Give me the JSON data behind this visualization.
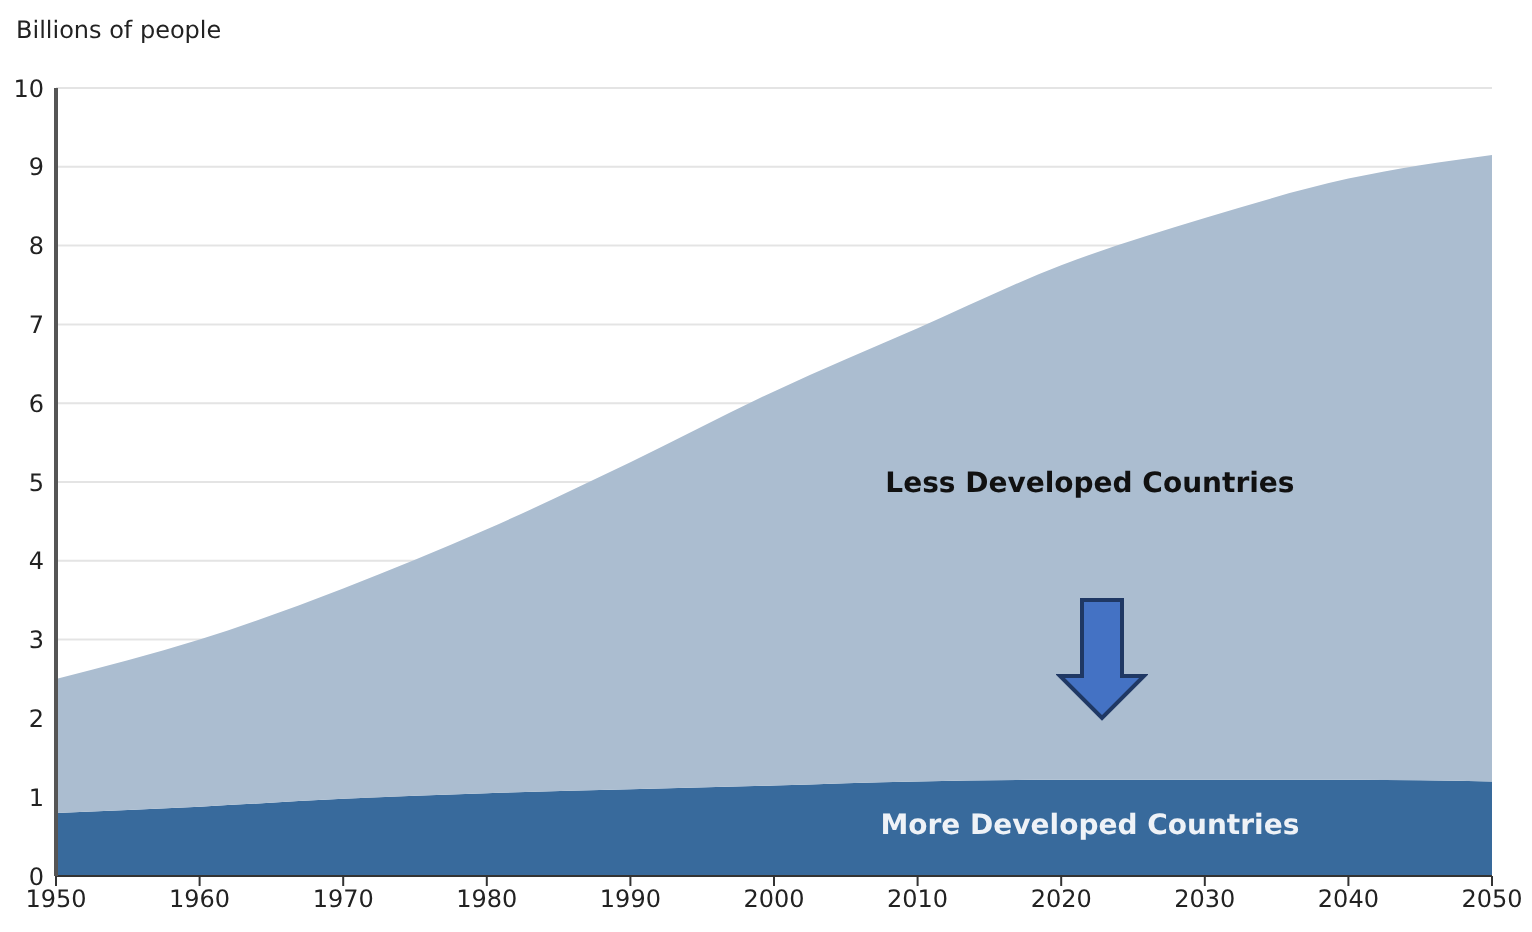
{
  "chart_data": {
    "type": "area",
    "stacked": true,
    "ylabel": "Billions of people",
    "x": [
      1950,
      1960,
      1970,
      1980,
      1990,
      2000,
      2010,
      2020,
      2030,
      2040,
      2050
    ],
    "series": [
      {
        "name": "More Developed Countries",
        "color": "#386a9c",
        "values": [
          0.8,
          0.88,
          0.98,
          1.05,
          1.1,
          1.15,
          1.2,
          1.22,
          1.22,
          1.22,
          1.2
        ]
      },
      {
        "name": "Less Developed Countries",
        "color": "#abbdd0",
        "values": [
          1.7,
          2.12,
          2.67,
          3.35,
          4.15,
          5.0,
          5.75,
          6.53,
          7.13,
          7.63,
          7.95
        ]
      }
    ],
    "xlim": [
      1950,
      2050
    ],
    "xticks": [
      1950,
      1960,
      1970,
      1980,
      1990,
      2000,
      2010,
      2020,
      2030,
      2040,
      2050
    ],
    "ylim": [
      0,
      10
    ],
    "yticks": [
      0,
      1,
      2,
      3,
      4,
      5,
      6,
      7,
      8,
      9,
      10
    ],
    "grid": "y"
  }
}
